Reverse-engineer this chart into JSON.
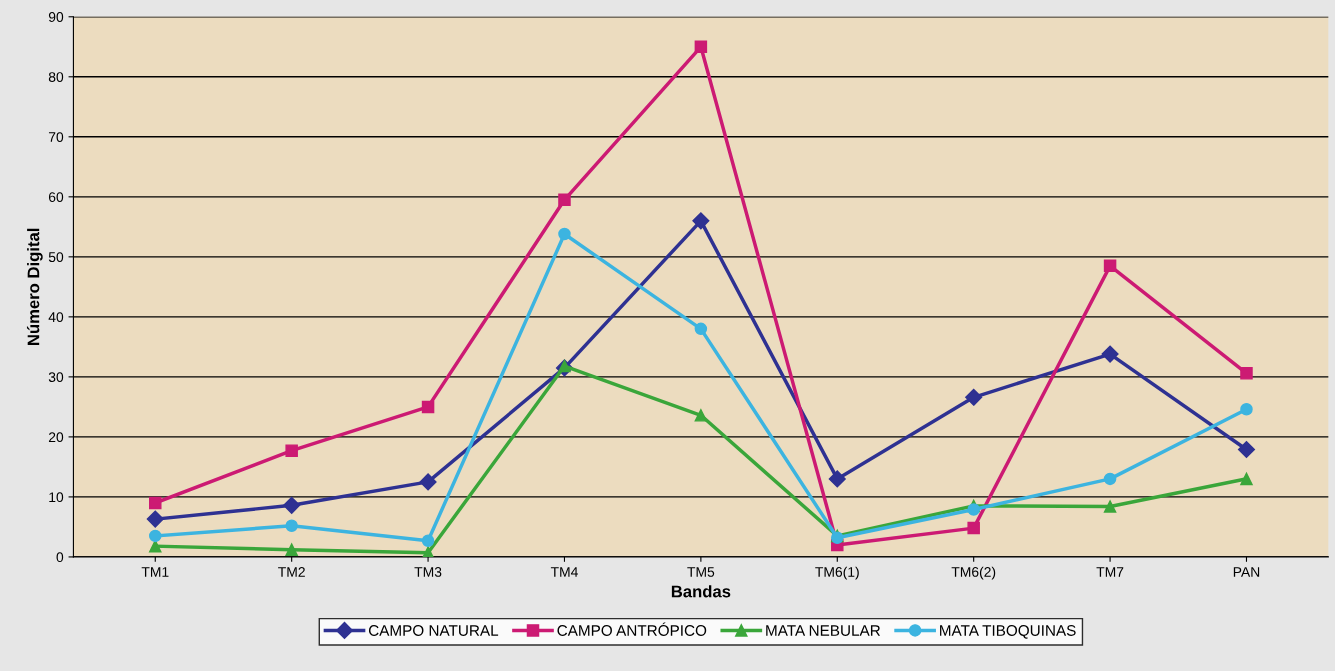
{
  "chart_data": {
    "type": "line",
    "xlabel": "Bandas",
    "ylabel": "Número Digital",
    "categories": [
      "TM1",
      "TM2",
      "TM3",
      "TM4",
      "TM5",
      "TM6(1)",
      "TM6(2)",
      "TM7",
      "PAN"
    ],
    "series": [
      {
        "name": "CAMPO NATURAL",
        "color": "#2e3192",
        "marker": "diamond",
        "values": [
          6.3,
          8.6,
          12.5,
          31.5,
          56,
          13,
          26.6,
          33.8,
          17.9
        ]
      },
      {
        "name": "CAMPO ANTRÓPICO",
        "color": "#cc1a73",
        "marker": "square",
        "values": [
          9,
          17.7,
          25,
          59.5,
          85,
          2,
          4.8,
          48.5,
          30.6
        ]
      },
      {
        "name": "MATA NEBULAR",
        "color": "#3aa63a",
        "marker": "triangle",
        "values": [
          1.8,
          1.2,
          0.7,
          31.8,
          23.6,
          3.5,
          8.5,
          8.4,
          13
        ]
      },
      {
        "name": "MATA TIBOQUINAS",
        "color": "#3cb4e0",
        "marker": "circle",
        "values": [
          3.5,
          5.2,
          2.7,
          53.8,
          38,
          3.2,
          7.9,
          13,
          24.6
        ]
      }
    ],
    "ylim": [
      0,
      90
    ],
    "yticks": [
      0,
      10,
      20,
      30,
      40,
      50,
      60,
      70,
      80,
      90
    ],
    "grid": "y",
    "legend": "bottom",
    "line_style": "solid"
  }
}
